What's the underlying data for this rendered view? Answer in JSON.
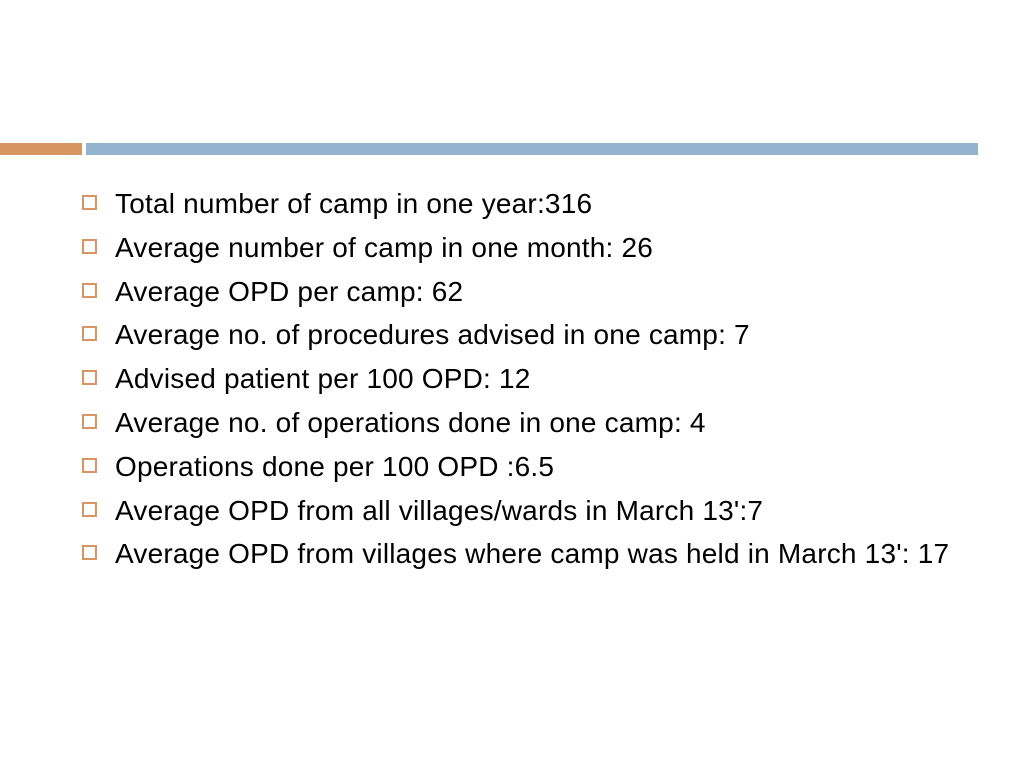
{
  "theme": {
    "orange": "#d89461",
    "blue": "#94b3ce",
    "bullet_border": "#d89461",
    "text_color": "#000000",
    "background": "#ffffff"
  },
  "items": [
    {
      "text": "Total number of camp in one year:316"
    },
    {
      "text": "Average number of camp in one month: 26"
    },
    {
      "text": "Average OPD per camp: 62"
    },
    {
      "text": "Average no. of procedures advised in one camp: 7"
    },
    {
      "text": "Advised patient per 100 OPD: 12"
    },
    {
      "text": "Average no. of operations done in one camp: 4"
    },
    {
      "text": "Operations done per 100 OPD :6.5"
    },
    {
      "text": "Average OPD from all villages/wards in March 13':7"
    },
    {
      "text": "Average OPD from villages where camp was held in March 13': 17"
    }
  ]
}
